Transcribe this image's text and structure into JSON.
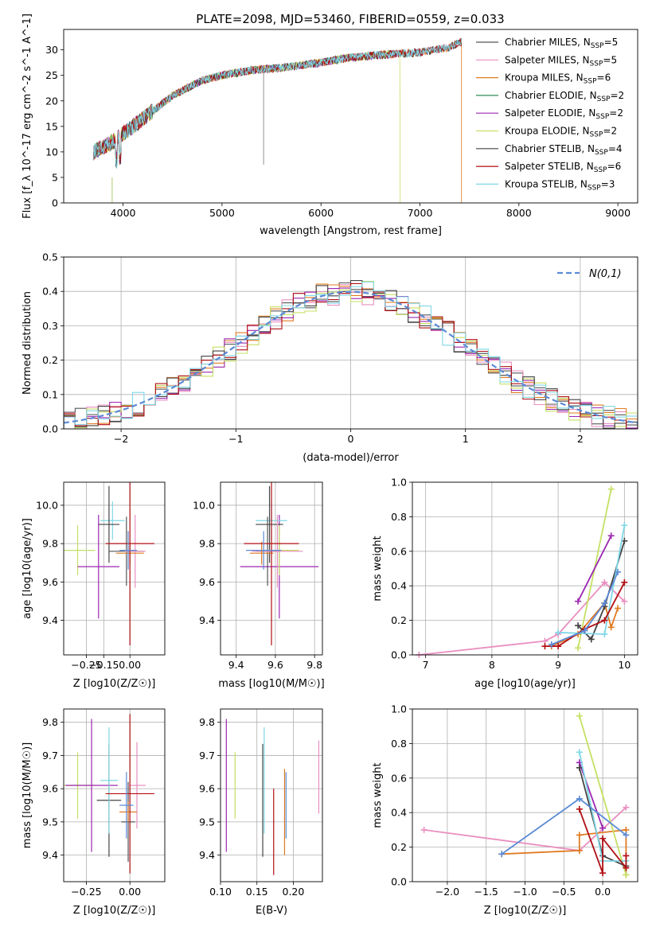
{
  "title": "PLATE=2098, MJD=53460, FIBERID=0559, z=0.033",
  "colors": {
    "Chabrier MILES": "#555555",
    "Salpeter MILES": "#e98fc0",
    "Kroupa MILES": "#e07b22",
    "Chabrier ELODIE": "#2e8b57",
    "Salpeter ELODIE": "#9b27b0",
    "Kroupa ELODIE": "#c5e063",
    "Chabrier STELIB": "#444444",
    "Salpeter STELIB": "#b00f14",
    "Kroupa STELIB": "#7fd7e6",
    "extra blue": "#5b8ad6"
  },
  "chart_data": [
    {
      "id": "spectrum",
      "type": "line",
      "xlabel": "wavelength [Angstrom, rest frame]",
      "ylabel": "Flux [f_λ 10^-17 erg cm^-2 s^-1 A^-1]",
      "xlim": [
        3400,
        9200
      ],
      "ylim": [
        0,
        34
      ],
      "xticks": [
        4000,
        5000,
        6000,
        7000,
        8000,
        9000
      ],
      "yticks": [
        0,
        5,
        10,
        15,
        20,
        25,
        30
      ],
      "grid": false,
      "legend_position": "right",
      "x": [
        3700,
        3900,
        4100,
        4300,
        4500,
        4800,
        5000,
        5300,
        5600,
        6000,
        6300,
        6600,
        7000,
        7300,
        7400
      ],
      "y": [
        10,
        12,
        15,
        18,
        21,
        24,
        25,
        26,
        26.5,
        27.5,
        28.5,
        29,
        29.5,
        30.5,
        31.5
      ],
      "series": [
        {
          "name": "Chabrier MILES",
          "nssp": "5"
        },
        {
          "name": "Salpeter MILES",
          "nssp": "5"
        },
        {
          "name": "Kroupa MILES",
          "nssp": "6"
        },
        {
          "name": "Chabrier ELODIE",
          "nssp": "2"
        },
        {
          "name": "Salpeter ELODIE",
          "nssp": "2"
        },
        {
          "name": "Kroupa ELODIE",
          "nssp": "2"
        },
        {
          "name": "Chabrier STELIB",
          "nssp": "4"
        },
        {
          "name": "Salpeter STELIB",
          "nssp": "6"
        },
        {
          "name": "Kroupa STELIB",
          "nssp": "3"
        }
      ]
    },
    {
      "id": "residuals",
      "type": "line",
      "xlabel": "(data-model)/error",
      "ylabel": "Normed distribution",
      "xlim": [
        -2.5,
        2.5
      ],
      "ylim": [
        0,
        0.5
      ],
      "xticks": [
        -2,
        -1,
        0,
        1,
        2
      ],
      "yticks": [
        0.0,
        0.1,
        0.2,
        0.3,
        0.4,
        0.5
      ],
      "grid": true,
      "legend_position": "top-right",
      "legend": "N(0,1)",
      "bin_width": 0.1
    },
    {
      "id": "age_vs_Z",
      "type": "scatter",
      "xlabel": "Z [log10(Z/Z☉)]",
      "ylabel": "age [log10(age/yr)]",
      "xlim": [
        -0.38,
        0.2
      ],
      "ylim": [
        9.22,
        10.12
      ],
      "xticks": [
        -0.25,
        -0.15,
        0.0
      ],
      "yticks": [
        9.4,
        9.6,
        9.8,
        10.0
      ],
      "grid": true,
      "points": [
        {
          "series": "Kroupa ELODIE",
          "x": -0.3,
          "y": 9.765,
          "xerr": 0.1,
          "yerr": 0.13
        },
        {
          "series": "Salpeter ELODIE",
          "x": -0.18,
          "y": 9.68,
          "xerr": 0.12,
          "yerr": 0.27
        },
        {
          "series": "Kroupa STELIB",
          "x": -0.1,
          "y": 9.92,
          "xerr": 0.07,
          "yerr": 0.1
        },
        {
          "series": "Chabrier STELIB",
          "x": -0.12,
          "y": 9.9,
          "xerr": 0.06,
          "yerr": 0.2
        },
        {
          "series": "Chabrier MILES",
          "x": -0.02,
          "y": 9.76,
          "xerr": 0.1,
          "yerr": 0.18
        },
        {
          "series": "Salpeter MILES",
          "x": 0.03,
          "y": 9.76,
          "xerr": 0.06,
          "yerr": 0.19
        },
        {
          "series": "Kroupa MILES",
          "x": 0.0,
          "y": 9.75,
          "xerr": 0.08,
          "yerr": 0.06
        },
        {
          "series": "Salpeter STELIB",
          "x": 0.0,
          "y": 9.8,
          "xerr": 0.14,
          "yerr": 0.53
        },
        {
          "series": "extra blue",
          "x": -0.01,
          "y": 9.765,
          "xerr": 0.05,
          "yerr": 0.1
        }
      ]
    },
    {
      "id": "age_vs_mass",
      "type": "scatter",
      "xlabel": "mass [log10(M/M☉)]",
      "ylabel": "",
      "xlim": [
        9.32,
        9.84
      ],
      "ylim": [
        9.22,
        10.12
      ],
      "xticks": [
        9.4,
        9.6,
        9.8
      ],
      "yticks": [
        9.4,
        9.6,
        9.8,
        10.0
      ],
      "grid": true,
      "points": [
        {
          "series": "Salpeter ELODIE",
          "x": 9.62,
          "y": 9.68,
          "xerr": 0.2,
          "yerr": 0.27
        },
        {
          "series": "Kroupa ELODIE",
          "x": 9.62,
          "y": 9.765,
          "xerr": 0.1,
          "yerr": 0.13
        },
        {
          "series": "Kroupa STELIB",
          "x": 9.58,
          "y": 9.92,
          "xerr": 0.08,
          "yerr": 0.1
        },
        {
          "series": "Chabrier STELIB",
          "x": 9.57,
          "y": 9.9,
          "xerr": 0.07,
          "yerr": 0.2
        },
        {
          "series": "Chabrier MILES",
          "x": 9.56,
          "y": 9.76,
          "xerr": 0.06,
          "yerr": 0.18
        },
        {
          "series": "Salpeter MILES",
          "x": 9.61,
          "y": 9.76,
          "xerr": 0.13,
          "yerr": 0.19
        },
        {
          "series": "Kroupa MILES",
          "x": 9.53,
          "y": 9.75,
          "xerr": 0.06,
          "yerr": 0.06
        },
        {
          "series": "Salpeter STELIB",
          "x": 9.58,
          "y": 9.8,
          "xerr": 0.14,
          "yerr": 0.53
        },
        {
          "series": "extra blue",
          "x": 9.54,
          "y": 9.765,
          "xerr": 0.09,
          "yerr": 0.1
        }
      ]
    },
    {
      "id": "mass_weight_vs_age",
      "type": "line",
      "xlabel": "age [log10(age/yr)]",
      "ylabel": "mass weight",
      "xlim": [
        6.8,
        10.2
      ],
      "ylim": [
        0,
        1
      ],
      "xticks": [
        7,
        8,
        9,
        10
      ],
      "yticks": [
        0.0,
        0.2,
        0.4,
        0.6,
        0.8,
        1.0
      ],
      "grid": true,
      "series": [
        {
          "name": "Salpeter MILES",
          "x": [
            6.9,
            8.8,
            9.0,
            9.7,
            10.0
          ],
          "y": [
            0.0,
            0.08,
            0.12,
            0.42,
            0.31
          ]
        },
        {
          "name": "Kroupa ELODIE",
          "x": [
            9.3,
            9.8
          ],
          "y": [
            0.04,
            0.96
          ]
        },
        {
          "name": "Kroupa MILES",
          "x": [
            8.9,
            9.3,
            9.7,
            9.8,
            9.9
          ],
          "y": [
            0.05,
            0.12,
            0.3,
            0.16,
            0.27
          ]
        },
        {
          "name": "Salpeter ELODIE",
          "x": [
            9.3,
            9.8
          ],
          "y": [
            0.31,
            0.69
          ]
        },
        {
          "name": "Chabrier STELIB",
          "x": [
            9.3,
            9.5,
            9.7,
            10.0
          ],
          "y": [
            0.17,
            0.09,
            0.28,
            0.66
          ]
        },
        {
          "name": "Kroupa STELIB",
          "x": [
            9.0,
            9.7,
            10.0
          ],
          "y": [
            0.13,
            0.12,
            0.75
          ]
        },
        {
          "name": "Salpeter STELIB",
          "x": [
            8.8,
            9.0,
            9.4,
            9.7,
            10.0
          ],
          "y": [
            0.05,
            0.05,
            0.15,
            0.2,
            0.42
          ]
        },
        {
          "name": "extra blue",
          "x": [
            8.9,
            9.4,
            9.7,
            9.9
          ],
          "y": [
            0.06,
            0.14,
            0.3,
            0.48
          ]
        }
      ]
    },
    {
      "id": "mass_vs_Z",
      "type": "scatter",
      "xlabel": "Z [log10(Z/Z☉)]",
      "ylabel": "mass [log10(M/M☉)]",
      "xlim": [
        -0.38,
        0.2
      ],
      "ylim": [
        9.32,
        9.84
      ],
      "xticks": [
        -0.25,
        0.0
      ],
      "yticks": [
        9.4,
        9.5,
        9.6,
        9.7,
        9.8
      ],
      "grid": true,
      "points": [
        {
          "series": "Kroupa ELODIE",
          "x": -0.3,
          "y": 9.61,
          "xerr": 0.1,
          "yerr": 0.1
        },
        {
          "series": "Salpeter ELODIE",
          "x": -0.22,
          "y": 9.61,
          "xerr": 0.15,
          "yerr": 0.2
        },
        {
          "series": "Chabrier STELIB",
          "x": -0.12,
          "y": 9.565,
          "xerr": 0.07,
          "yerr": 0.17
        },
        {
          "series": "Kroupa STELIB",
          "x": -0.12,
          "y": 9.625,
          "xerr": 0.05,
          "yerr": 0.16
        },
        {
          "series": "Chabrier MILES",
          "x": -0.01,
          "y": 9.5,
          "xerr": 0.04,
          "yerr": 0.12
        },
        {
          "series": "Salpeter MILES",
          "x": 0.04,
          "y": 9.61,
          "xerr": 0.05,
          "yerr": 0.13
        },
        {
          "series": "Kroupa MILES",
          "x": -0.01,
          "y": 9.53,
          "xerr": 0.05,
          "yerr": 0.03
        },
        {
          "series": "Salpeter STELIB",
          "x": 0.0,
          "y": 9.585,
          "xerr": 0.14,
          "yerr": 0.24
        },
        {
          "series": "extra blue",
          "x": -0.02,
          "y": 9.55,
          "xerr": 0.04,
          "yerr": 0.1
        }
      ]
    },
    {
      "id": "mass_vs_ebv",
      "type": "scatter",
      "xlabel": "E(B-V)",
      "ylabel": "",
      "xlim": [
        0.1,
        0.24
      ],
      "ylim": [
        9.32,
        9.84
      ],
      "xticks": [
        0.1,
        0.15,
        0.2
      ],
      "yticks": [
        9.4,
        9.5,
        9.6,
        9.7,
        9.8
      ],
      "grid": true,
      "points": [
        {
          "series": "Salpeter ELODIE",
          "x": 0.108,
          "y": 9.61,
          "yerr": 0.2
        },
        {
          "series": "Kroupa ELODIE",
          "x": 0.12,
          "y": 9.61,
          "yerr": 0.1
        },
        {
          "series": "Chabrier STELIB",
          "x": 0.158,
          "y": 9.565,
          "yerr": 0.17
        },
        {
          "series": "Kroupa STELIB",
          "x": 0.16,
          "y": 9.625,
          "yerr": 0.16
        },
        {
          "series": "Salpeter STELIB",
          "x": 0.173,
          "y": 9.47,
          "yerr": 0.13
        },
        {
          "series": "Kroupa MILES",
          "x": 0.188,
          "y": 9.53,
          "yerr": 0.13
        },
        {
          "series": "extra blue",
          "x": 0.19,
          "y": 9.55,
          "yerr": 0.1
        },
        {
          "series": "Salpeter MILES",
          "x": 0.235,
          "y": 9.635,
          "yerr": 0.11
        }
      ]
    },
    {
      "id": "mass_weight_vs_Z",
      "type": "line",
      "xlabel": "Z [log10(Z/Z☉)]",
      "ylabel": "mass weight",
      "xlim": [
        -2.45,
        0.45
      ],
      "ylim": [
        0,
        1
      ],
      "xticks": [
        -2.0,
        -1.5,
        -1.0,
        -0.5,
        0.0
      ],
      "yticks": [
        0.0,
        0.2,
        0.4,
        0.6,
        0.8,
        1.0
      ],
      "grid": true,
      "series": [
        {
          "name": "Salpeter MILES",
          "x": [
            -2.3,
            -0.3,
            0.3
          ],
          "y": [
            0.3,
            0.18,
            0.43
          ]
        },
        {
          "name": "Kroupa MILES",
          "x": [
            -1.3,
            -0.3,
            -0.3,
            0.3,
            0.3
          ],
          "y": [
            0.16,
            0.18,
            0.27,
            0.3,
            0.04
          ]
        },
        {
          "name": "Kroupa ELODIE",
          "x": [
            -0.3,
            0.3
          ],
          "y": [
            0.96,
            0.04
          ]
        },
        {
          "name": "Salpeter ELODIE",
          "x": [
            -0.3,
            0.0
          ],
          "y": [
            0.69,
            0.31
          ]
        },
        {
          "name": "Chabrier STELIB",
          "x": [
            -0.3,
            0.0,
            0.3
          ],
          "y": [
            0.66,
            0.15,
            0.09
          ]
        },
        {
          "name": "Kroupa STELIB",
          "x": [
            -0.3,
            0.0,
            0.3
          ],
          "y": [
            0.75,
            0.12,
            0.12
          ]
        },
        {
          "name": "Salpeter STELIB",
          "x": [
            -0.3,
            0.0,
            0.0,
            0.3,
            0.3
          ],
          "y": [
            0.42,
            0.05,
            0.25,
            0.08,
            0.15
          ]
        },
        {
          "name": "extra blue",
          "x": [
            -1.3,
            -0.3,
            0.3
          ],
          "y": [
            0.16,
            0.48,
            0.27
          ]
        }
      ]
    }
  ]
}
